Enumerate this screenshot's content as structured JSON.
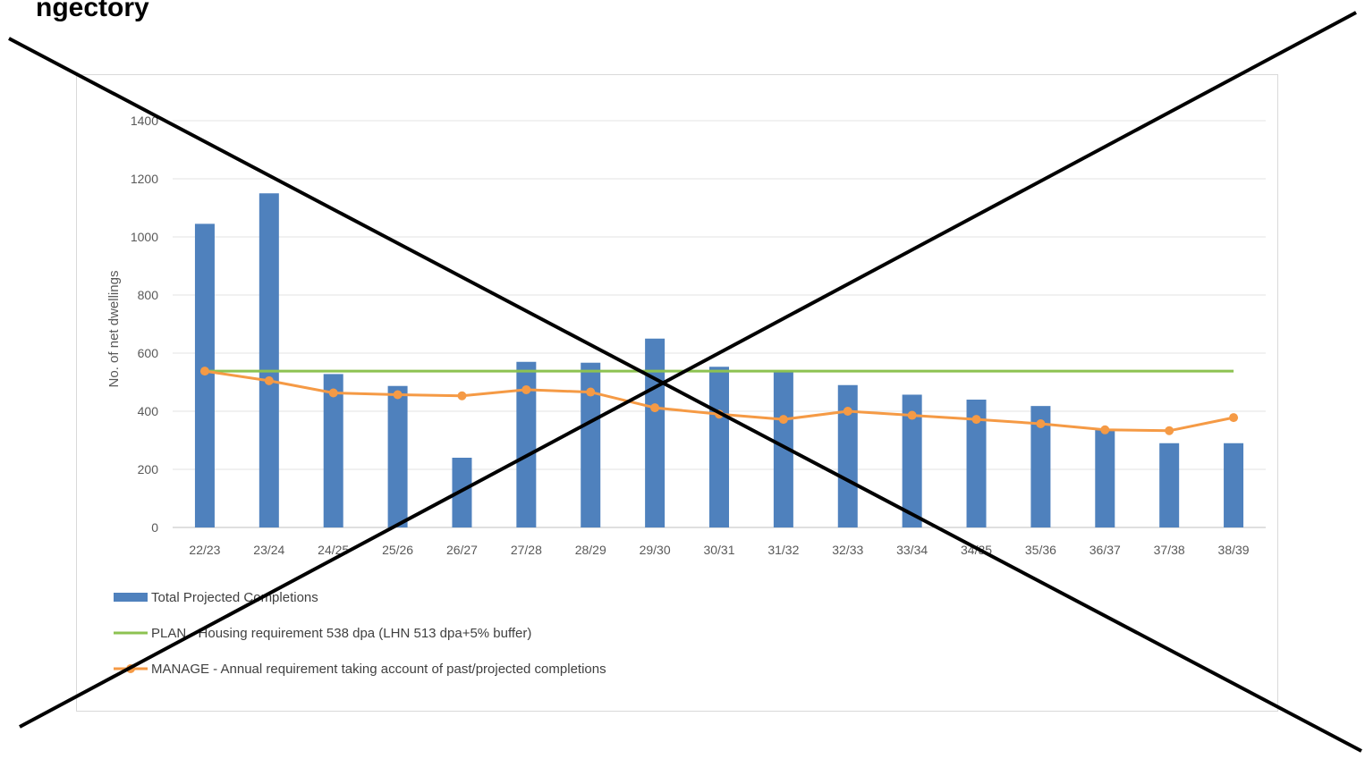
{
  "page": {
    "heading": "ngectory"
  },
  "chart_data": {
    "type": "bar",
    "title": "",
    "xlabel": "",
    "ylabel": "No. of net dwellings",
    "ylim": [
      0,
      1400
    ],
    "yticks": [
      0,
      200,
      400,
      600,
      800,
      1000,
      1200,
      1400
    ],
    "grid": true,
    "legend_position": "bottom-left",
    "categories": [
      "22/23",
      "23/24",
      "24/25",
      "25/26",
      "26/27",
      "27/28",
      "28/29",
      "29/30",
      "30/31",
      "31/32",
      "32/33",
      "33/34",
      "34/35",
      "35/36",
      "36/37",
      "37/38",
      "38/39"
    ],
    "series": [
      {
        "name": "Total Projected Completions",
        "type": "bar",
        "color": "#4f81bd",
        "values": [
          1045,
          1150,
          528,
          487,
          240,
          570,
          567,
          650,
          553,
          535,
          490,
          457,
          440,
          418,
          338,
          290,
          290
        ]
      },
      {
        "name": "PLAN - Housing requirement 538 dpa (LHN 513 dpa+5% buffer)",
        "type": "line",
        "color": "#8dc251",
        "values": [
          538,
          538,
          538,
          538,
          538,
          538,
          538,
          538,
          538,
          538,
          538,
          538,
          538,
          538,
          538,
          538,
          538
        ]
      },
      {
        "name": "MANAGE - Annual requirement taking account of past/projected completions",
        "type": "line",
        "color": "#f59a45",
        "markers": true,
        "values": [
          538,
          505,
          463,
          457,
          453,
          474,
          466,
          412,
          390,
          372,
          400,
          386,
          372,
          357,
          336,
          333,
          378
        ]
      }
    ]
  },
  "overlay": {
    "type": "cross-out",
    "color": "#000000"
  }
}
